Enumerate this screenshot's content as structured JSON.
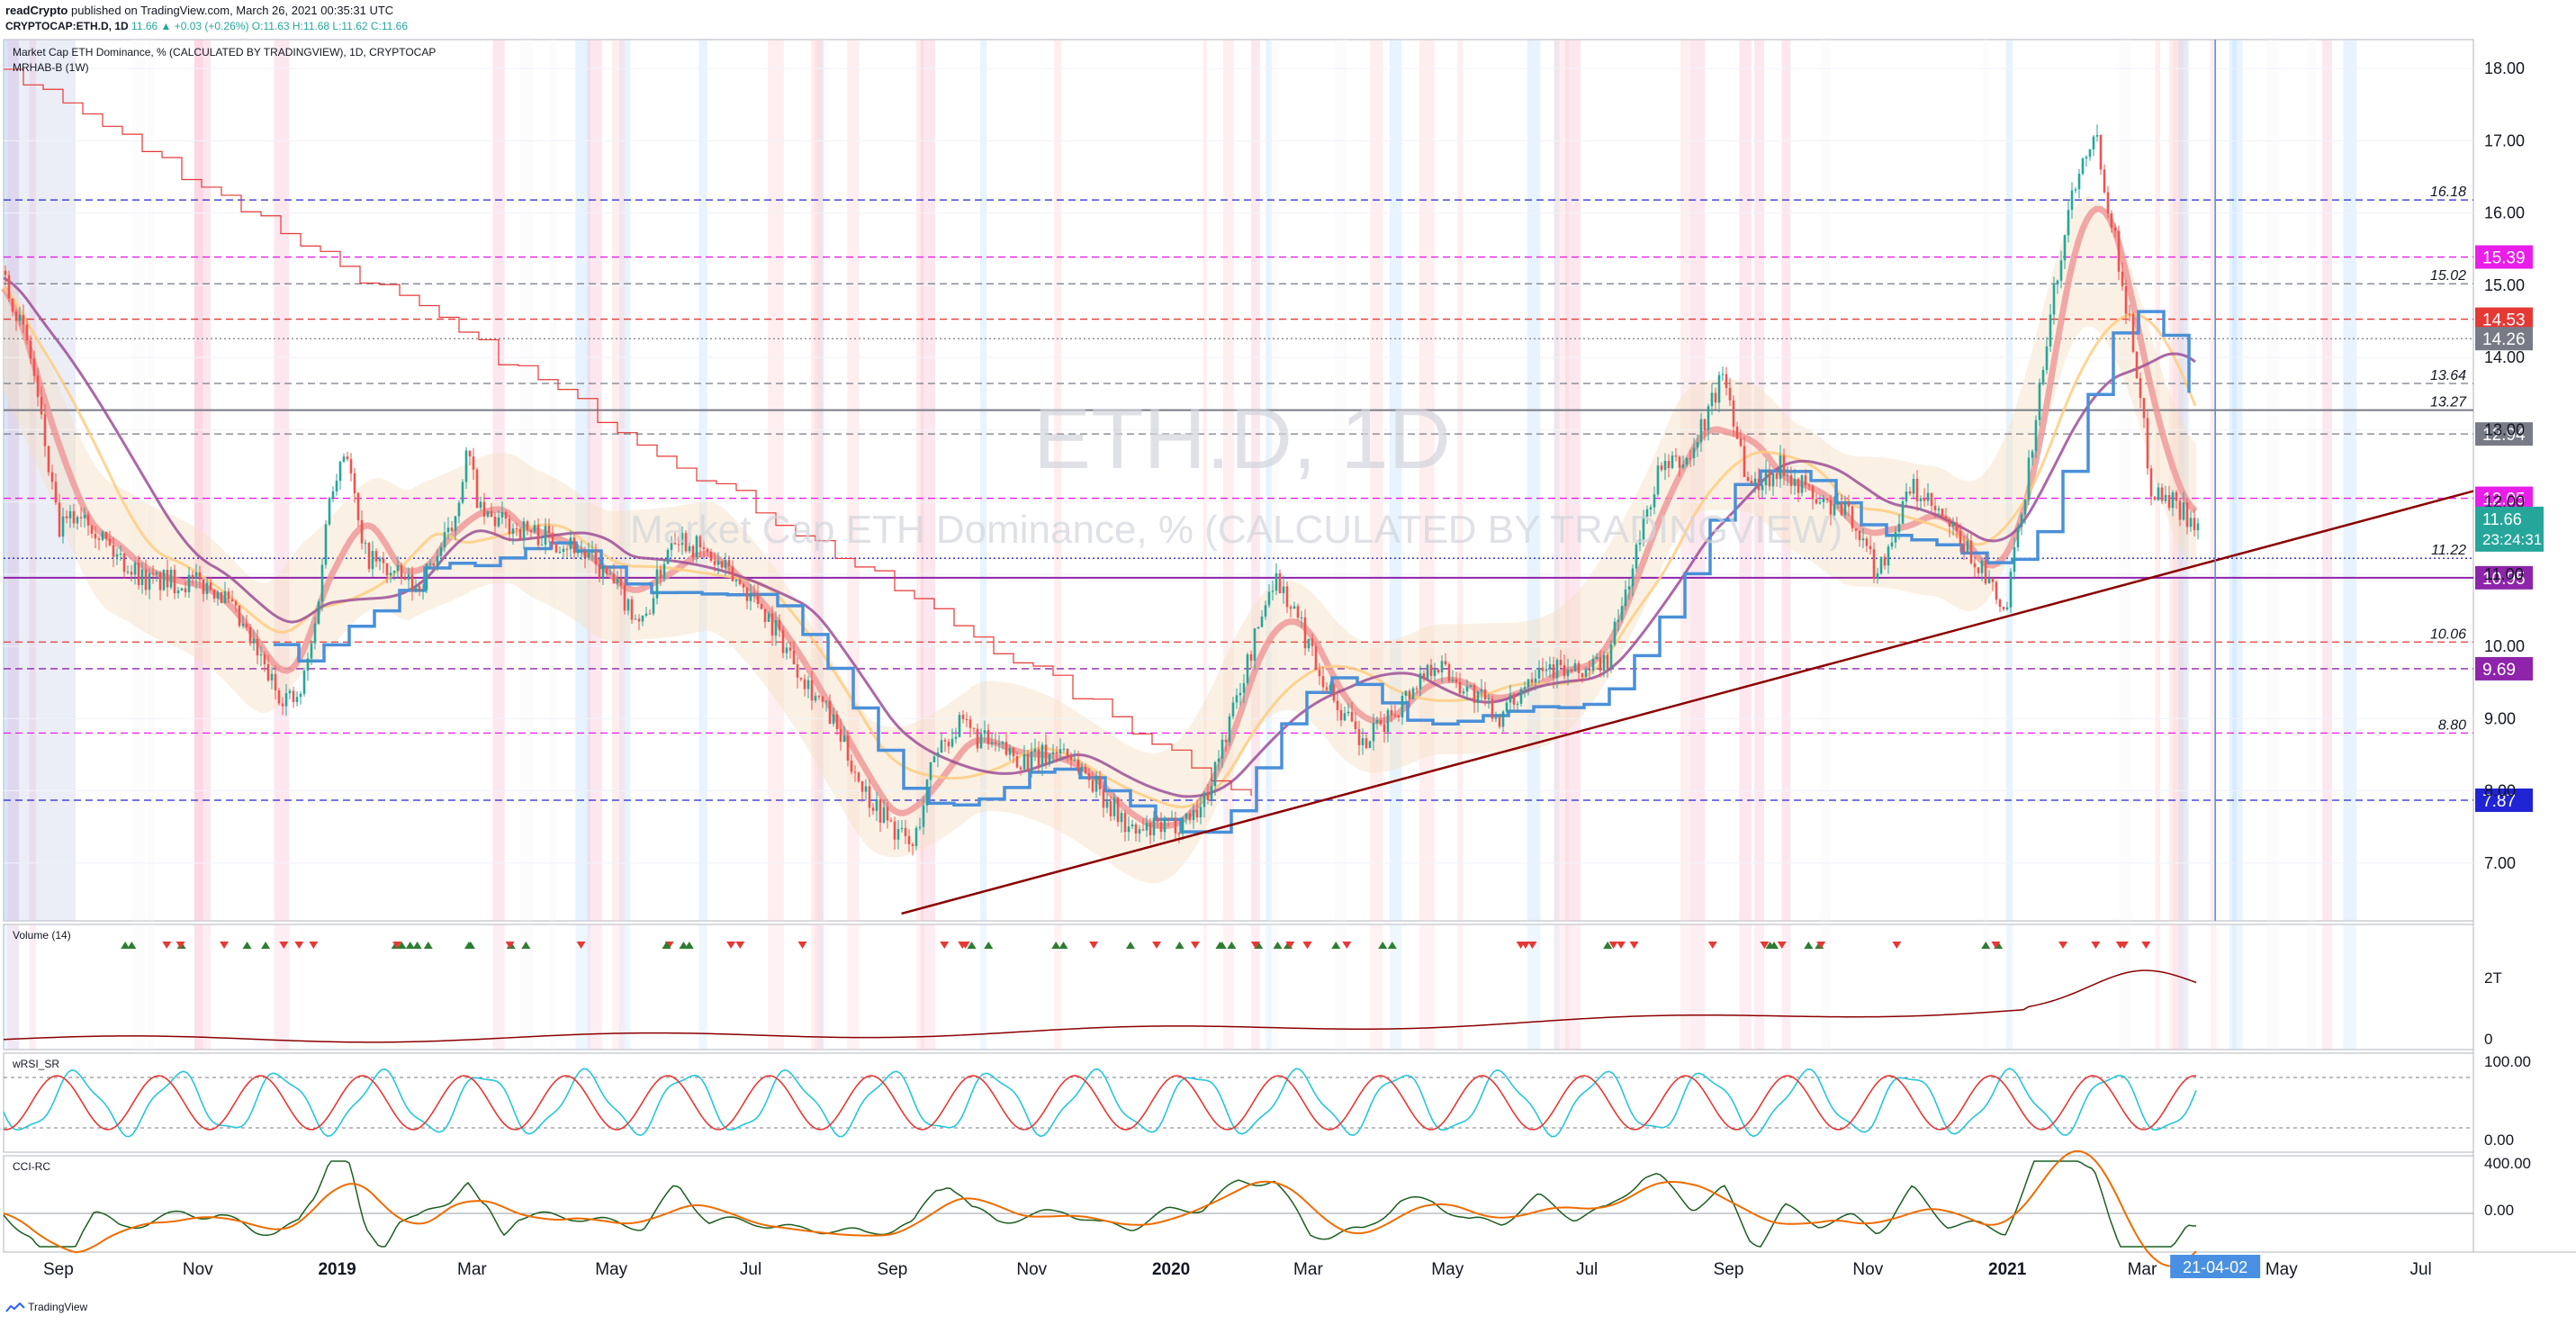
{
  "header": {
    "publisher": "readCrypto",
    "published_text": "published on TradingView.com, March 26, 2021 00:35:31 UTC",
    "symbol": "CRYPTOCAP:ETH.D, 1D",
    "last_change": "11.66 ▲ +0.03 (+0.26%)",
    "ohlc": "O:11.63 H:11.68 L:11.62 C:11.66"
  },
  "main_pane": {
    "title": "Market Cap ETH Dominance, % (CALCULATED BY TRADINGVIEW), 1D, CRYPTOCAP",
    "indicator": "MRHAB-B (1W)",
    "watermark_symbol": "ETH.D, 1D",
    "watermark_desc": "Market Cap ETH Dominance, % (CALCULATED BY TRADINGVIEW)"
  },
  "volume_pane": {
    "title": "Volume (14)",
    "tick_2t": "2T",
    "tick_0": "0"
  },
  "rsi_pane": {
    "title": "wRSI_SR",
    "tick_100": "100.00",
    "tick_0": "0.00"
  },
  "cci_pane": {
    "title": "CCI-RC",
    "tick_400": "400.00",
    "tick_0": "0.00"
  },
  "current_price": {
    "value": "11.66",
    "countdown": "23:24:31",
    "color": "#26a69a"
  },
  "x_cursor_label": "21-04-02",
  "footer": {
    "brand": "TradingView"
  },
  "colors": {
    "candle_up": "#26a69a",
    "candle_down": "#ef5350",
    "trendline": "#8b0000",
    "magenta": "#e91ee9",
    "purple": "#8e24aa",
    "red": "#e53935",
    "gray": "#787b86",
    "navy": "#2124d4",
    "blue_step": "#4a90d9"
  },
  "chart_data": {
    "type": "candlestick",
    "y_range": [
      6.2,
      18.4
    ],
    "y_ticks": [
      "7.00",
      "8.00",
      "9.00",
      "10.00",
      "11.00",
      "12.00",
      "13.00",
      "14.00",
      "15.00",
      "16.00",
      "17.00",
      "18.00"
    ],
    "x_ticks": [
      "Sep",
      "Nov",
      "2019",
      "Mar",
      "May",
      "Jul",
      "Sep",
      "Nov",
      "2020",
      "Mar",
      "May",
      "Jul",
      "Sep",
      "Nov",
      "2021",
      "Mar",
      "May",
      "Jul"
    ],
    "x_tick_dates": [
      "2018-09-01",
      "2018-11-01",
      "2019-01-01",
      "2019-03-01",
      "2019-05-01",
      "2019-07-01",
      "2019-09-01",
      "2019-11-01",
      "2020-01-01",
      "2020-03-01",
      "2020-05-01",
      "2020-07-01",
      "2020-09-01",
      "2020-11-01",
      "2021-01-01",
      "2021-03-01",
      "2021-05-01",
      "2021-07-01"
    ],
    "x_range": [
      "2018-08-08",
      "2021-07-24"
    ],
    "cursor_date": "2021-04-02",
    "series": [
      {
        "name": "ETH.D",
        "points": [
          [
            "2018-08-08",
            15.2
          ],
          [
            "2018-08-20",
            14.0
          ],
          [
            "2018-09-01",
            11.6
          ],
          [
            "2018-09-12",
            11.9
          ],
          [
            "2018-09-25",
            11.3
          ],
          [
            "2018-10-10",
            10.9
          ],
          [
            "2018-10-25",
            10.9
          ],
          [
            "2018-11-10",
            10.8
          ],
          [
            "2018-11-25",
            10.0
          ],
          [
            "2018-12-05",
            9.4
          ],
          [
            "2018-12-15",
            9.2
          ],
          [
            "2018-12-22",
            10.2
          ],
          [
            "2018-12-29",
            12.2
          ],
          [
            "2019-01-05",
            12.8
          ],
          [
            "2019-01-12",
            11.3
          ],
          [
            "2019-01-25",
            11.0
          ],
          [
            "2019-02-05",
            10.8
          ],
          [
            "2019-02-20",
            11.6
          ],
          [
            "2019-02-27",
            12.7
          ],
          [
            "2019-03-05",
            11.8
          ],
          [
            "2019-03-25",
            11.6
          ],
          [
            "2019-04-15",
            11.4
          ],
          [
            "2019-05-01",
            10.9
          ],
          [
            "2019-05-15",
            10.3
          ],
          [
            "2019-05-28",
            11.6
          ],
          [
            "2019-06-10",
            11.3
          ],
          [
            "2019-06-25",
            10.9
          ],
          [
            "2019-07-05",
            10.6
          ],
          [
            "2019-07-20",
            9.8
          ],
          [
            "2019-08-05",
            9.0
          ],
          [
            "2019-08-20",
            8.0
          ],
          [
            "2019-09-01",
            7.5
          ],
          [
            "2019-09-10",
            7.2
          ],
          [
            "2019-09-20",
            8.6
          ],
          [
            "2019-10-01",
            8.9
          ],
          [
            "2019-10-15",
            8.6
          ],
          [
            "2019-11-01",
            8.4
          ],
          [
            "2019-11-15",
            8.6
          ],
          [
            "2019-12-01",
            8.0
          ],
          [
            "2019-12-15",
            7.4
          ],
          [
            "2020-01-01",
            7.5
          ],
          [
            "2020-01-15",
            7.8
          ],
          [
            "2020-02-01",
            9.5
          ],
          [
            "2020-02-15",
            11.0
          ],
          [
            "2020-02-25",
            10.4
          ],
          [
            "2020-03-10",
            9.4
          ],
          [
            "2020-03-25",
            8.6
          ],
          [
            "2020-04-10",
            9.2
          ],
          [
            "2020-04-25",
            9.8
          ],
          [
            "2020-05-10",
            9.4
          ],
          [
            "2020-05-25",
            9.0
          ],
          [
            "2020-06-10",
            9.8
          ],
          [
            "2020-06-25",
            9.6
          ],
          [
            "2020-07-10",
            9.8
          ],
          [
            "2020-07-20",
            11.0
          ],
          [
            "2020-08-01",
            12.4
          ],
          [
            "2020-08-15",
            12.6
          ],
          [
            "2020-08-30",
            13.8
          ],
          [
            "2020-09-10",
            12.2
          ],
          [
            "2020-09-25",
            12.5
          ],
          [
            "2020-10-10",
            12.0
          ],
          [
            "2020-10-25",
            11.8
          ],
          [
            "2020-11-05",
            11.0
          ],
          [
            "2020-11-20",
            12.2
          ],
          [
            "2020-12-05",
            11.7
          ],
          [
            "2020-12-20",
            11.1
          ],
          [
            "2020-12-31",
            10.4
          ],
          [
            "2021-01-08",
            12.0
          ],
          [
            "2021-01-20",
            14.6
          ],
          [
            "2021-01-30",
            16.4
          ],
          [
            "2021-02-08",
            17.2
          ],
          [
            "2021-02-15",
            16.0
          ],
          [
            "2021-02-25",
            14.2
          ],
          [
            "2021-03-05",
            12.2
          ],
          [
            "2021-03-15",
            12.0
          ],
          [
            "2021-03-26",
            11.66
          ]
        ]
      }
    ],
    "levels": [
      {
        "value": 16.18,
        "label": "16.18",
        "style": "dash",
        "color": "#2124d4",
        "badge": false
      },
      {
        "value": 15.39,
        "label": "15.39",
        "style": "dash",
        "color": "#e91ee9",
        "badge": true
      },
      {
        "value": 15.02,
        "label": "15.02",
        "style": "dash",
        "color": "#787b86",
        "badge": false
      },
      {
        "value": 14.53,
        "label": "14.53",
        "style": "dash",
        "color": "#e53935",
        "badge": true
      },
      {
        "value": 14.26,
        "label": "14.26",
        "style": "dot",
        "color": "#787b86",
        "badge": true
      },
      {
        "value": 13.64,
        "label": "13.64",
        "style": "dash",
        "color": "#787b86",
        "badge": false
      },
      {
        "value": 13.27,
        "label": "13.27",
        "style": "solid",
        "color": "#787b86",
        "badge": false
      },
      {
        "value": 12.94,
        "label": "12.94",
        "style": "dash",
        "color": "#787b86",
        "badge": true
      },
      {
        "value": 12.05,
        "label": "12.05",
        "style": "dash",
        "color": "#e91ee9",
        "badge": true
      },
      {
        "value": 11.22,
        "label": "11.22",
        "style": "dot",
        "color": "#2124d4",
        "badge": false
      },
      {
        "value": 10.95,
        "label": "10.95",
        "style": "solid",
        "color": "#8e24aa",
        "badge": true
      },
      {
        "value": 10.06,
        "label": "10.06",
        "style": "dash",
        "color": "#e53935",
        "badge": false
      },
      {
        "value": 9.69,
        "label": "9.69",
        "style": "dash",
        "color": "#8e24aa",
        "badge": true
      },
      {
        "value": 8.8,
        "label": "8.80",
        "style": "dash",
        "color": "#e91ee9",
        "badge": false
      },
      {
        "value": 7.87,
        "label": "7.87",
        "style": "dash",
        "color": "#2124d4",
        "badge": true
      }
    ],
    "trendline": [
      [
        "2019-09-05",
        6.3
      ],
      [
        "2021-07-24",
        12.15
      ]
    ]
  }
}
